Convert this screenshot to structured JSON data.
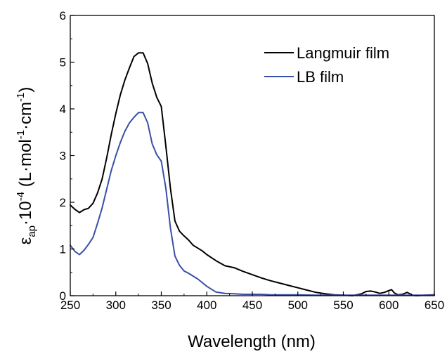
{
  "chart_data": {
    "type": "line",
    "xlabel": "Wavelength (nm)",
    "ylabel": {
      "epsilon": "ε",
      "ap": "ap",
      "dot10": "·10",
      "exp4": "-4",
      "unit_open": " (L·mol",
      "exp1a": "-1",
      "unit_mid": "·cm",
      "exp1b": "-1",
      "unit_close": ")"
    },
    "xlim": [
      250,
      650
    ],
    "ylim": [
      0,
      6
    ],
    "xticks": [
      "250",
      "300",
      "350",
      "400",
      "450",
      "500",
      "550",
      "600",
      "650"
    ],
    "yticks": [
      "0",
      "1",
      "2",
      "3",
      "4",
      "5",
      "6"
    ],
    "legend_position": "top-right",
    "grid": false,
    "series": [
      {
        "name": "Langmuir film",
        "color": "#000000",
        "x": [
          250,
          255,
          260,
          265,
          270,
          275,
          280,
          285,
          290,
          295,
          300,
          305,
          310,
          315,
          320,
          325,
          330,
          335,
          340,
          345,
          350,
          355,
          360,
          365,
          370,
          375,
          380,
          385,
          390,
          395,
          400,
          410,
          420,
          430,
          440,
          450,
          460,
          470,
          480,
          490,
          500,
          510,
          520,
          530,
          540,
          550,
          560,
          570,
          575,
          580,
          585,
          590,
          595,
          600,
          603,
          606,
          610,
          615,
          620,
          623,
          626,
          630,
          640,
          650
        ],
        "y": [
          1.94,
          1.85,
          1.78,
          1.84,
          1.87,
          1.98,
          2.2,
          2.5,
          2.95,
          3.45,
          3.9,
          4.3,
          4.62,
          4.88,
          5.12,
          5.2,
          5.2,
          4.97,
          4.55,
          4.25,
          4.05,
          3.2,
          2.3,
          1.6,
          1.38,
          1.28,
          1.19,
          1.08,
          1.02,
          0.96,
          0.88,
          0.75,
          0.64,
          0.6,
          0.52,
          0.45,
          0.38,
          0.32,
          0.27,
          0.22,
          0.17,
          0.12,
          0.07,
          0.04,
          0.02,
          0.01,
          0.0,
          0.04,
          0.09,
          0.1,
          0.08,
          0.05,
          0.07,
          0.11,
          0.13,
          0.06,
          0.02,
          0.03,
          0.07,
          0.04,
          0.01,
          0.0,
          0.01,
          0.02
        ]
      },
      {
        "name": "LB film",
        "color": "#3a4fa6",
        "x": [
          250,
          255,
          260,
          265,
          270,
          275,
          280,
          285,
          290,
          295,
          300,
          305,
          310,
          315,
          320,
          325,
          330,
          335,
          340,
          345,
          350,
          355,
          360,
          365,
          370,
          375,
          380,
          385,
          390,
          395,
          400,
          410,
          420,
          430,
          440,
          450,
          460,
          470,
          480,
          490,
          500,
          520,
          540,
          560,
          580,
          600,
          620,
          640,
          650
        ],
        "y": [
          1.08,
          0.95,
          0.88,
          0.97,
          1.1,
          1.25,
          1.55,
          1.88,
          2.28,
          2.68,
          3.0,
          3.28,
          3.52,
          3.7,
          3.82,
          3.92,
          3.92,
          3.7,
          3.25,
          3.02,
          2.88,
          2.3,
          1.45,
          0.85,
          0.65,
          0.53,
          0.48,
          0.42,
          0.36,
          0.28,
          0.2,
          0.08,
          0.05,
          0.04,
          0.03,
          0.03,
          0.03,
          0.02,
          0.02,
          0.02,
          0.02,
          0.01,
          0.01,
          0.01,
          0.01,
          0.01,
          0.01,
          0.01,
          0.01
        ]
      }
    ]
  }
}
